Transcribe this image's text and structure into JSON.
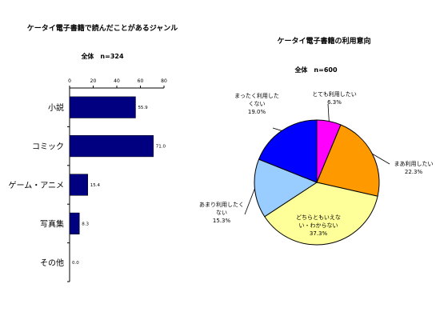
{
  "chart_data": [
    {
      "type": "bar",
      "orientation": "horizontal",
      "title": "ケータイ電子書籍で読んだことがあるジャンル",
      "subtitle": "全体　n=324",
      "categories": [
        "小説",
        "コミック",
        "ゲーム・アニメ",
        "写真集",
        "その他"
      ],
      "values": [
        55.9,
        71.0,
        15.4,
        8.3,
        0.0
      ],
      "value_labels": [
        "55.9",
        "71.0",
        "15.4",
        "8.3",
        "0.0"
      ],
      "xlim": [
        0,
        80
      ],
      "ticks": [
        "0",
        "20",
        "40",
        "60",
        "80"
      ],
      "bar_color": "#000080",
      "grid": false
    },
    {
      "type": "pie",
      "title": "ケータイ電子書籍の利用意向",
      "subtitle": "全体　n=600",
      "slices": [
        {
          "lines": [
            "とても利用したい",
            "6.3%"
          ],
          "value": 6.3,
          "color": "#ff00ff"
        },
        {
          "lines": [
            "まあ利用したい",
            "22.3%"
          ],
          "value": 22.3,
          "color": "#ff9900"
        },
        {
          "lines": [
            "どちらともいえな",
            "い・わからない",
            "37.3%"
          ],
          "value": 37.3,
          "color": "#ffff99"
        },
        {
          "lines": [
            "あまり利用したく",
            "ない",
            "15.3%"
          ],
          "value": 15.3,
          "color": "#99ccff"
        },
        {
          "lines": [
            "まったく利用した",
            "くない",
            "19.0%"
          ],
          "value": 19.0,
          "color": "#0000ff"
        }
      ]
    }
  ]
}
